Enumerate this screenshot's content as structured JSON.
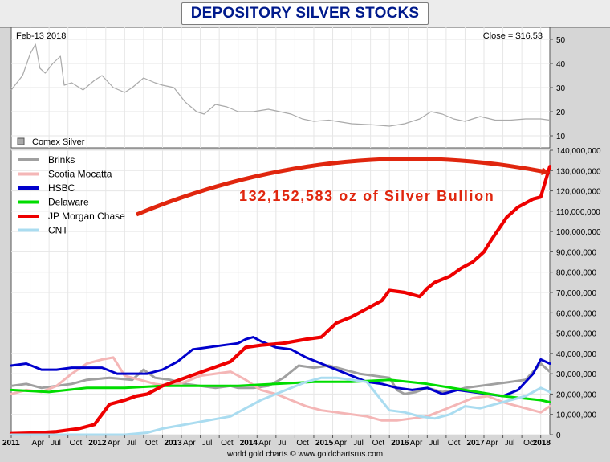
{
  "title": "DEPOSITORY SILVER STOCKS",
  "footer": "world gold charts © www.goldchartsrus.com",
  "chart_data": [
    {
      "type": "line",
      "date_label": "Feb-13  2018",
      "close_label": "Close = $16.53",
      "legend": [
        "Comex Silver"
      ],
      "ylabel": "",
      "ylim": [
        5,
        55
      ],
      "yticks": [
        10,
        20,
        30,
        40,
        50
      ],
      "grid": true,
      "series": [
        {
          "name": "Comex Silver",
          "color": "#aaaaaa",
          "x": [
            2011.0,
            2011.15,
            2011.25,
            2011.32,
            2011.38,
            2011.45,
            2011.55,
            2011.65,
            2011.7,
            2011.8,
            2011.95,
            2012.1,
            2012.2,
            2012.35,
            2012.5,
            2012.6,
            2012.75,
            2012.9,
            2013.0,
            2013.15,
            2013.3,
            2013.45,
            2013.55,
            2013.7,
            2013.85,
            2014.0,
            2014.2,
            2014.4,
            2014.55,
            2014.7,
            2014.85,
            2015.0,
            2015.2,
            2015.5,
            2015.8,
            2016.0,
            2016.2,
            2016.4,
            2016.55,
            2016.7,
            2016.85,
            2017.0,
            2017.2,
            2017.4,
            2017.6,
            2017.8,
            2018.0,
            2018.12
          ],
          "y": [
            29,
            35,
            44,
            48,
            38,
            36,
            40,
            43,
            31,
            32,
            29,
            33,
            35,
            30,
            28,
            30,
            34,
            32,
            31,
            30,
            24,
            20,
            19,
            23,
            22,
            20,
            20,
            21,
            20,
            19,
            17,
            16,
            16.5,
            15,
            14.5,
            14,
            15,
            17,
            20,
            19,
            17,
            16,
            18,
            16.5,
            16.5,
            17,
            17,
            16.5
          ]
        }
      ]
    },
    {
      "type": "line",
      "annotation": "132,152,583 oz of Silver Bullion",
      "ylabel": "",
      "ylim": [
        0,
        140000000
      ],
      "yticks": [
        "0",
        "10,000,000",
        "20,000,000",
        "30,000,000",
        "40,000,000",
        "50,000,000",
        "60,000,000",
        "70,000,000",
        "80,000,000",
        "90,000,000",
        "100,000,000",
        "110,000,000",
        "120,000,000",
        "130,000,000",
        "140,000,000"
      ],
      "xticks": [
        {
          "v": 2011.0,
          "label": "2011"
        },
        {
          "v": 2011.25,
          "label": "Apr"
        },
        {
          "v": 2011.5,
          "label": "Jul"
        },
        {
          "v": 2011.75,
          "label": "Oct"
        },
        {
          "v": 2012.0,
          "label": "2012"
        },
        {
          "v": 2012.25,
          "label": "Apr"
        },
        {
          "v": 2012.5,
          "label": "Jul"
        },
        {
          "v": 2012.75,
          "label": "Oct"
        },
        {
          "v": 2013.0,
          "label": "2013"
        },
        {
          "v": 2013.25,
          "label": "Apr"
        },
        {
          "v": 2013.5,
          "label": "Jul"
        },
        {
          "v": 2013.75,
          "label": "Oct"
        },
        {
          "v": 2014.0,
          "label": "2014"
        },
        {
          "v": 2014.25,
          "label": "Apr"
        },
        {
          "v": 2014.5,
          "label": "Jul"
        },
        {
          "v": 2014.75,
          "label": "Oct"
        },
        {
          "v": 2015.0,
          "label": "2015"
        },
        {
          "v": 2015.25,
          "label": "Apr"
        },
        {
          "v": 2015.5,
          "label": "Jul"
        },
        {
          "v": 2015.75,
          "label": "Oct"
        },
        {
          "v": 2016.0,
          "label": "2016"
        },
        {
          "v": 2016.25,
          "label": "Apr"
        },
        {
          "v": 2016.5,
          "label": "Jul"
        },
        {
          "v": 2016.75,
          "label": "Oct"
        },
        {
          "v": 2017.0,
          "label": "2017"
        },
        {
          "v": 2017.25,
          "label": "Apr"
        },
        {
          "v": 2017.5,
          "label": "Jul"
        },
        {
          "v": 2017.75,
          "label": "Oct"
        },
        {
          "v": 2018.0,
          "label": "2018"
        }
      ],
      "grid": true,
      "legend_position": "top-left",
      "series": [
        {
          "name": "Brinks",
          "color": "#a0a0a0",
          "x": [
            2011.0,
            2011.2,
            2011.4,
            2011.6,
            2011.8,
            2012.0,
            2012.3,
            2012.6,
            2012.75,
            2012.9,
            2013.1,
            2013.3,
            2013.5,
            2013.7,
            2013.9,
            2014.0,
            2014.2,
            2014.4,
            2014.6,
            2014.8,
            2015.0,
            2015.2,
            2015.4,
            2015.6,
            2015.8,
            2016.0,
            2016.1,
            2016.2,
            2016.35,
            2016.5,
            2016.7,
            2016.9,
            2017.0,
            2017.2,
            2017.4,
            2017.6,
            2017.8,
            2018.0,
            2018.12
          ],
          "y": [
            24000000,
            25000000,
            23000000,
            24000000,
            25000000,
            27000000,
            28000000,
            27000000,
            32000000,
            28000000,
            27000000,
            25000000,
            24000000,
            23000000,
            24000000,
            23000000,
            23000000,
            24000000,
            28000000,
            34000000,
            33000000,
            34000000,
            32000000,
            30000000,
            29000000,
            28000000,
            22000000,
            20000000,
            21000000,
            23000000,
            21000000,
            22000000,
            23000000,
            24000000,
            25000000,
            26000000,
            27000000,
            35000000,
            31000000
          ]
        },
        {
          "name": "Scotia Mocatta",
          "color": "#f4b6b6",
          "x": [
            2011.0,
            2011.2,
            2011.4,
            2011.6,
            2011.8,
            2012.0,
            2012.2,
            2012.35,
            2012.5,
            2012.7,
            2012.9,
            2013.1,
            2013.3,
            2013.5,
            2013.7,
            2013.9,
            2014.1,
            2014.3,
            2014.5,
            2014.7,
            2014.9,
            2015.1,
            2015.3,
            2015.5,
            2015.7,
            2015.9,
            2016.1,
            2016.3,
            2016.5,
            2016.7,
            2016.9,
            2017.1,
            2017.3,
            2017.5,
            2017.7,
            2017.9,
            2018.0,
            2018.12
          ],
          "y": [
            20000000,
            22000000,
            21000000,
            24000000,
            30000000,
            35000000,
            37000000,
            38000000,
            29000000,
            27000000,
            25000000,
            24000000,
            26000000,
            29000000,
            30000000,
            31000000,
            27000000,
            22000000,
            20000000,
            17000000,
            14000000,
            12000000,
            11000000,
            10000000,
            9000000,
            7000000,
            7000000,
            8000000,
            9000000,
            12000000,
            15000000,
            18000000,
            19000000,
            16000000,
            14000000,
            12000000,
            11000000,
            14000000
          ]
        },
        {
          "name": "HSBC",
          "color": "#0000cc",
          "x": [
            2011.0,
            2011.2,
            2011.4,
            2011.6,
            2011.8,
            2012.0,
            2012.2,
            2012.4,
            2012.6,
            2012.8,
            2013.0,
            2013.2,
            2013.4,
            2013.6,
            2013.8,
            2014.0,
            2014.1,
            2014.2,
            2014.3,
            2014.5,
            2014.7,
            2014.9,
            2015.1,
            2015.3,
            2015.5,
            2015.7,
            2015.9,
            2016.1,
            2016.3,
            2016.5,
            2016.7,
            2016.9,
            2017.1,
            2017.3,
            2017.5,
            2017.7,
            2017.9,
            2018.0,
            2018.12
          ],
          "y": [
            34000000,
            35000000,
            32000000,
            32000000,
            33000000,
            33000000,
            33000000,
            30000000,
            30000000,
            30000000,
            32000000,
            36000000,
            42000000,
            43000000,
            44000000,
            45000000,
            47000000,
            48000000,
            46000000,
            43000000,
            42000000,
            38000000,
            35000000,
            32000000,
            29000000,
            26000000,
            25000000,
            23000000,
            22000000,
            23000000,
            20000000,
            22000000,
            21000000,
            20000000,
            19000000,
            22000000,
            30000000,
            37000000,
            35000000
          ]
        },
        {
          "name": "Delaware",
          "color": "#00dd00",
          "x": [
            2011.0,
            2011.5,
            2012.0,
            2012.5,
            2013.0,
            2013.5,
            2014.0,
            2014.5,
            2015.0,
            2015.5,
            2016.0,
            2016.5,
            2017.0,
            2017.5,
            2018.0,
            2018.12
          ],
          "y": [
            22000000,
            21000000,
            23000000,
            23000000,
            24000000,
            24000000,
            24000000,
            25000000,
            26000000,
            26000000,
            27000000,
            25000000,
            22000000,
            19000000,
            17000000,
            16000000
          ]
        },
        {
          "name": "JP Morgan Chase",
          "color": "#ee0000",
          "x": [
            2011.0,
            2011.3,
            2011.6,
            2011.9,
            2012.1,
            2012.3,
            2012.5,
            2012.65,
            2012.8,
            2012.9,
            2013.0,
            2013.3,
            2013.6,
            2013.9,
            2014.1,
            2014.3,
            2014.6,
            2014.9,
            2015.1,
            2015.3,
            2015.5,
            2015.7,
            2015.9,
            2016.0,
            2016.2,
            2016.4,
            2016.5,
            2016.6,
            2016.8,
            2016.95,
            2017.1,
            2017.25,
            2017.35,
            2017.55,
            2017.7,
            2017.9,
            2018.0,
            2018.12
          ],
          "y": [
            500000,
            800000,
            1500000,
            3000000,
            5000000,
            15000000,
            17000000,
            19000000,
            20000000,
            22000000,
            24000000,
            28000000,
            32000000,
            36000000,
            43000000,
            44000000,
            45000000,
            47000000,
            48000000,
            55000000,
            58000000,
            62000000,
            66000000,
            71000000,
            70000000,
            68000000,
            72000000,
            75000000,
            78000000,
            82000000,
            85000000,
            90000000,
            96000000,
            107000000,
            112000000,
            116000000,
            117000000,
            132000000
          ]
        },
        {
          "name": "CNT",
          "color": "#aadcf0",
          "x": [
            2011.0,
            2012.5,
            2012.8,
            2013.0,
            2013.3,
            2013.6,
            2013.9,
            2014.1,
            2014.3,
            2014.5,
            2014.7,
            2014.9,
            2015.1,
            2015.3,
            2015.5,
            2015.7,
            2015.85,
            2016.0,
            2016.2,
            2016.4,
            2016.6,
            2016.8,
            2017.0,
            2017.2,
            2017.4,
            2017.6,
            2017.8,
            2018.0,
            2018.12
          ],
          "y": [
            0,
            0,
            1000000,
            3000000,
            5000000,
            7000000,
            9000000,
            13000000,
            17000000,
            20000000,
            23000000,
            26000000,
            28000000,
            28000000,
            27000000,
            26000000,
            19000000,
            12000000,
            11000000,
            9000000,
            8000000,
            10000000,
            14000000,
            13000000,
            15000000,
            17000000,
            19000000,
            23000000,
            21000000
          ]
        }
      ]
    }
  ]
}
